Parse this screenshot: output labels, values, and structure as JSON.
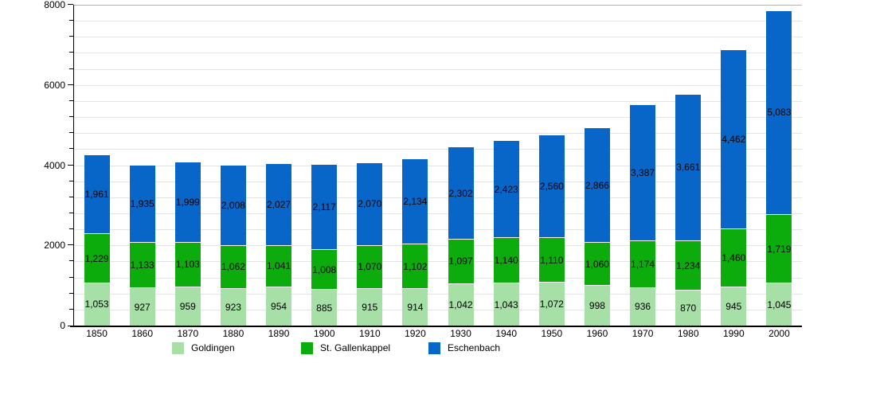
{
  "chart_data": {
    "type": "bar",
    "stacked": true,
    "title": "",
    "xlabel": "",
    "ylabel": "",
    "categories": [
      "1850",
      "1860",
      "1870",
      "1880",
      "1890",
      "1900",
      "1910",
      "1920",
      "1930",
      "1940",
      "1950",
      "1960",
      "1970",
      "1980",
      "1990",
      "2000"
    ],
    "series": [
      {
        "name": "Goldingen",
        "color": "#a6e0a6",
        "values": [
          1053,
          927,
          959,
          923,
          954,
          885,
          915,
          914,
          1042,
          1043,
          1072,
          998,
          936,
          870,
          945,
          1045
        ]
      },
      {
        "name": "St. Gallenkappel",
        "color": "#0cac0c",
        "values": [
          1229,
          1133,
          1103,
          1062,
          1041,
          1008,
          1070,
          1102,
          1097,
          1140,
          1110,
          1060,
          1174,
          1234,
          1460,
          1719
        ]
      },
      {
        "name": "Eschenbach",
        "color": "#0766c8",
        "values": [
          1961,
          1935,
          1999,
          2008,
          2027,
          2117,
          2070,
          2134,
          2302,
          2423,
          2560,
          2866,
          3387,
          3661,
          4462,
          5083
        ]
      }
    ],
    "ylim": [
      0,
      8000
    ],
    "y_major_ticks": [
      0,
      2000,
      4000,
      6000,
      8000
    ],
    "y_major_tick_labels": [
      "0",
      "2000",
      "4000",
      "6000",
      "8000"
    ],
    "y_minor_step": 400,
    "grid": true,
    "grid_color": "#e4e4e4",
    "grid_top_line_color": "#b3b3b3",
    "data_labels": true,
    "number_format": "thousands-comma",
    "legend_position": "bottom",
    "legend": [
      "Goldingen",
      "St. Gallenkappel",
      "Eschenbach"
    ]
  }
}
